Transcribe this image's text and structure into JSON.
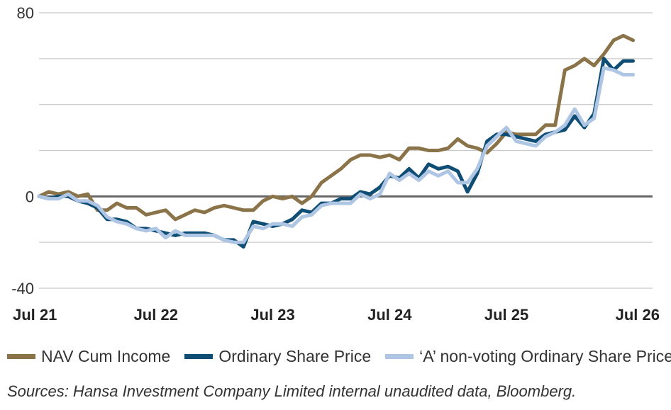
{
  "chart_data": {
    "type": "line",
    "title": "",
    "xlabel": "",
    "ylabel": "",
    "ylim": [
      -40,
      80
    ],
    "y_ticks": [
      80,
      0,
      -40
    ],
    "y_gridlines": [
      80,
      60,
      40,
      20,
      0,
      -20,
      -40
    ],
    "x_ticks": [
      {
        "x": 0,
        "label": "Jul 21"
      },
      {
        "x": 12,
        "label": "Jul 22"
      },
      {
        "x": 24,
        "label": "Jul 23"
      },
      {
        "x": 36,
        "label": "Jul 24"
      },
      {
        "x": 48,
        "label": "Jul 25"
      },
      {
        "x": 60,
        "label": "Jul 26"
      }
    ],
    "x_range": [
      0,
      63
    ],
    "legend_position": "bottom",
    "grid": true,
    "series": [
      {
        "name": "NAV Cum Income",
        "color": "#8b7349",
        "values": [
          0,
          2,
          1,
          2,
          0,
          1,
          -6,
          -6,
          -3,
          -5,
          -5,
          -8,
          -7,
          -6,
          -10,
          -8,
          -6,
          -7,
          -5,
          -4,
          -5,
          -6,
          -6,
          -2,
          0,
          -1,
          0,
          -3,
          0,
          6,
          9,
          12,
          16,
          18,
          18,
          17,
          18,
          16,
          21,
          21,
          20,
          20,
          21,
          25,
          22,
          21,
          19,
          23,
          28,
          27,
          27,
          27,
          31,
          31,
          55,
          57,
          60,
          57,
          62,
          68,
          70,
          68
        ]
      },
      {
        "name": "Ordinary Share Price",
        "color": "#0f4d75",
        "values": [
          0,
          -1,
          0,
          0,
          -2,
          -3,
          -5,
          -10,
          -10,
          -11,
          -14,
          -14,
          -15,
          -16,
          -17,
          -16,
          -16,
          -16,
          -17,
          -19,
          -19,
          -22,
          -11,
          -12,
          -13,
          -12,
          -10,
          -6,
          -7,
          -3,
          -3,
          -1,
          -1,
          2,
          1,
          4,
          9,
          8,
          12,
          8,
          14,
          12,
          13,
          11,
          2,
          10,
          24,
          27,
          27,
          26,
          25,
          24,
          27,
          28,
          29,
          35,
          30,
          36,
          60,
          55,
          59,
          59
        ]
      },
      {
        "name": "‘A’ non-voting Ordinary Share Price",
        "color": "#aec6e4",
        "values": [
          0,
          -1,
          -1,
          1,
          -2,
          -2,
          -4,
          -9,
          -11,
          -12,
          -14,
          -15,
          -14,
          -18,
          -15,
          -17,
          -17,
          -17,
          -17,
          -19,
          -20,
          -20,
          -13,
          -14,
          -12,
          -12,
          -13,
          -9,
          -8,
          -4,
          -3,
          -3,
          -3,
          1,
          -1,
          1,
          10,
          7,
          10,
          7,
          11,
          9,
          11,
          6,
          6,
          12,
          22,
          26,
          30,
          24,
          23,
          22,
          26,
          28,
          31,
          38,
          31,
          34,
          56,
          55,
          53,
          53
        ]
      }
    ]
  },
  "source_note": "Sources: Hansa Investment Company Limited internal unaudited data, Bloomberg."
}
